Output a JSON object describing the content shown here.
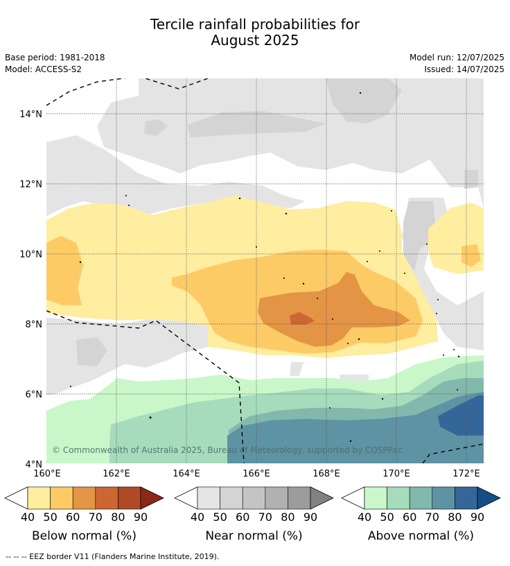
{
  "title": {
    "line1": "Tercile rainfall probabilities for",
    "line2": "August 2025"
  },
  "meta": {
    "base_period": "Base period: 1981-2018",
    "model": "Model: ACCESS-S2",
    "model_run": "Model run: 12/07/2025",
    "issued": "Issued: 14/07/2025"
  },
  "axes": {
    "x_ticks": [
      "160°E",
      "162°E",
      "164°E",
      "166°E",
      "168°E",
      "170°E",
      "172°E"
    ],
    "y_ticks": [
      "14°N",
      "12°N",
      "10°N",
      "8°N",
      "6°N",
      "4°N"
    ]
  },
  "copyright": "© Commonwealth of Australia 2025, Bureau of Meteorology, supported by COSPPac",
  "colorbars": [
    {
      "title": "Below normal (%)",
      "labels": [
        "40",
        "50",
        "60",
        "70",
        "80",
        "90"
      ],
      "colors": [
        "#ffeda0",
        "#fdcb66",
        "#e39445",
        "#cc6633",
        "#b04a26",
        "#8b2a18"
      ]
    },
    {
      "title": "Near normal (%)",
      "labels": [
        "40",
        "50",
        "60",
        "70",
        "80",
        "90"
      ],
      "colors": [
        "#e4e4e4",
        "#d4d4d4",
        "#c4c4c4",
        "#b1b1b1",
        "#9c9c9c",
        "#828282"
      ]
    },
    {
      "title": "Above normal (%)",
      "labels": [
        "40",
        "50",
        "60",
        "70",
        "80",
        "90"
      ],
      "colors": [
        "#c9f7c9",
        "#a6dcbc",
        "#83b8ac",
        "#5e93a3",
        "#346699",
        "#154e85"
      ]
    }
  ],
  "footer": "--  --  -- EEZ border V11 (Flanders Marine Institute, 2019)."
}
